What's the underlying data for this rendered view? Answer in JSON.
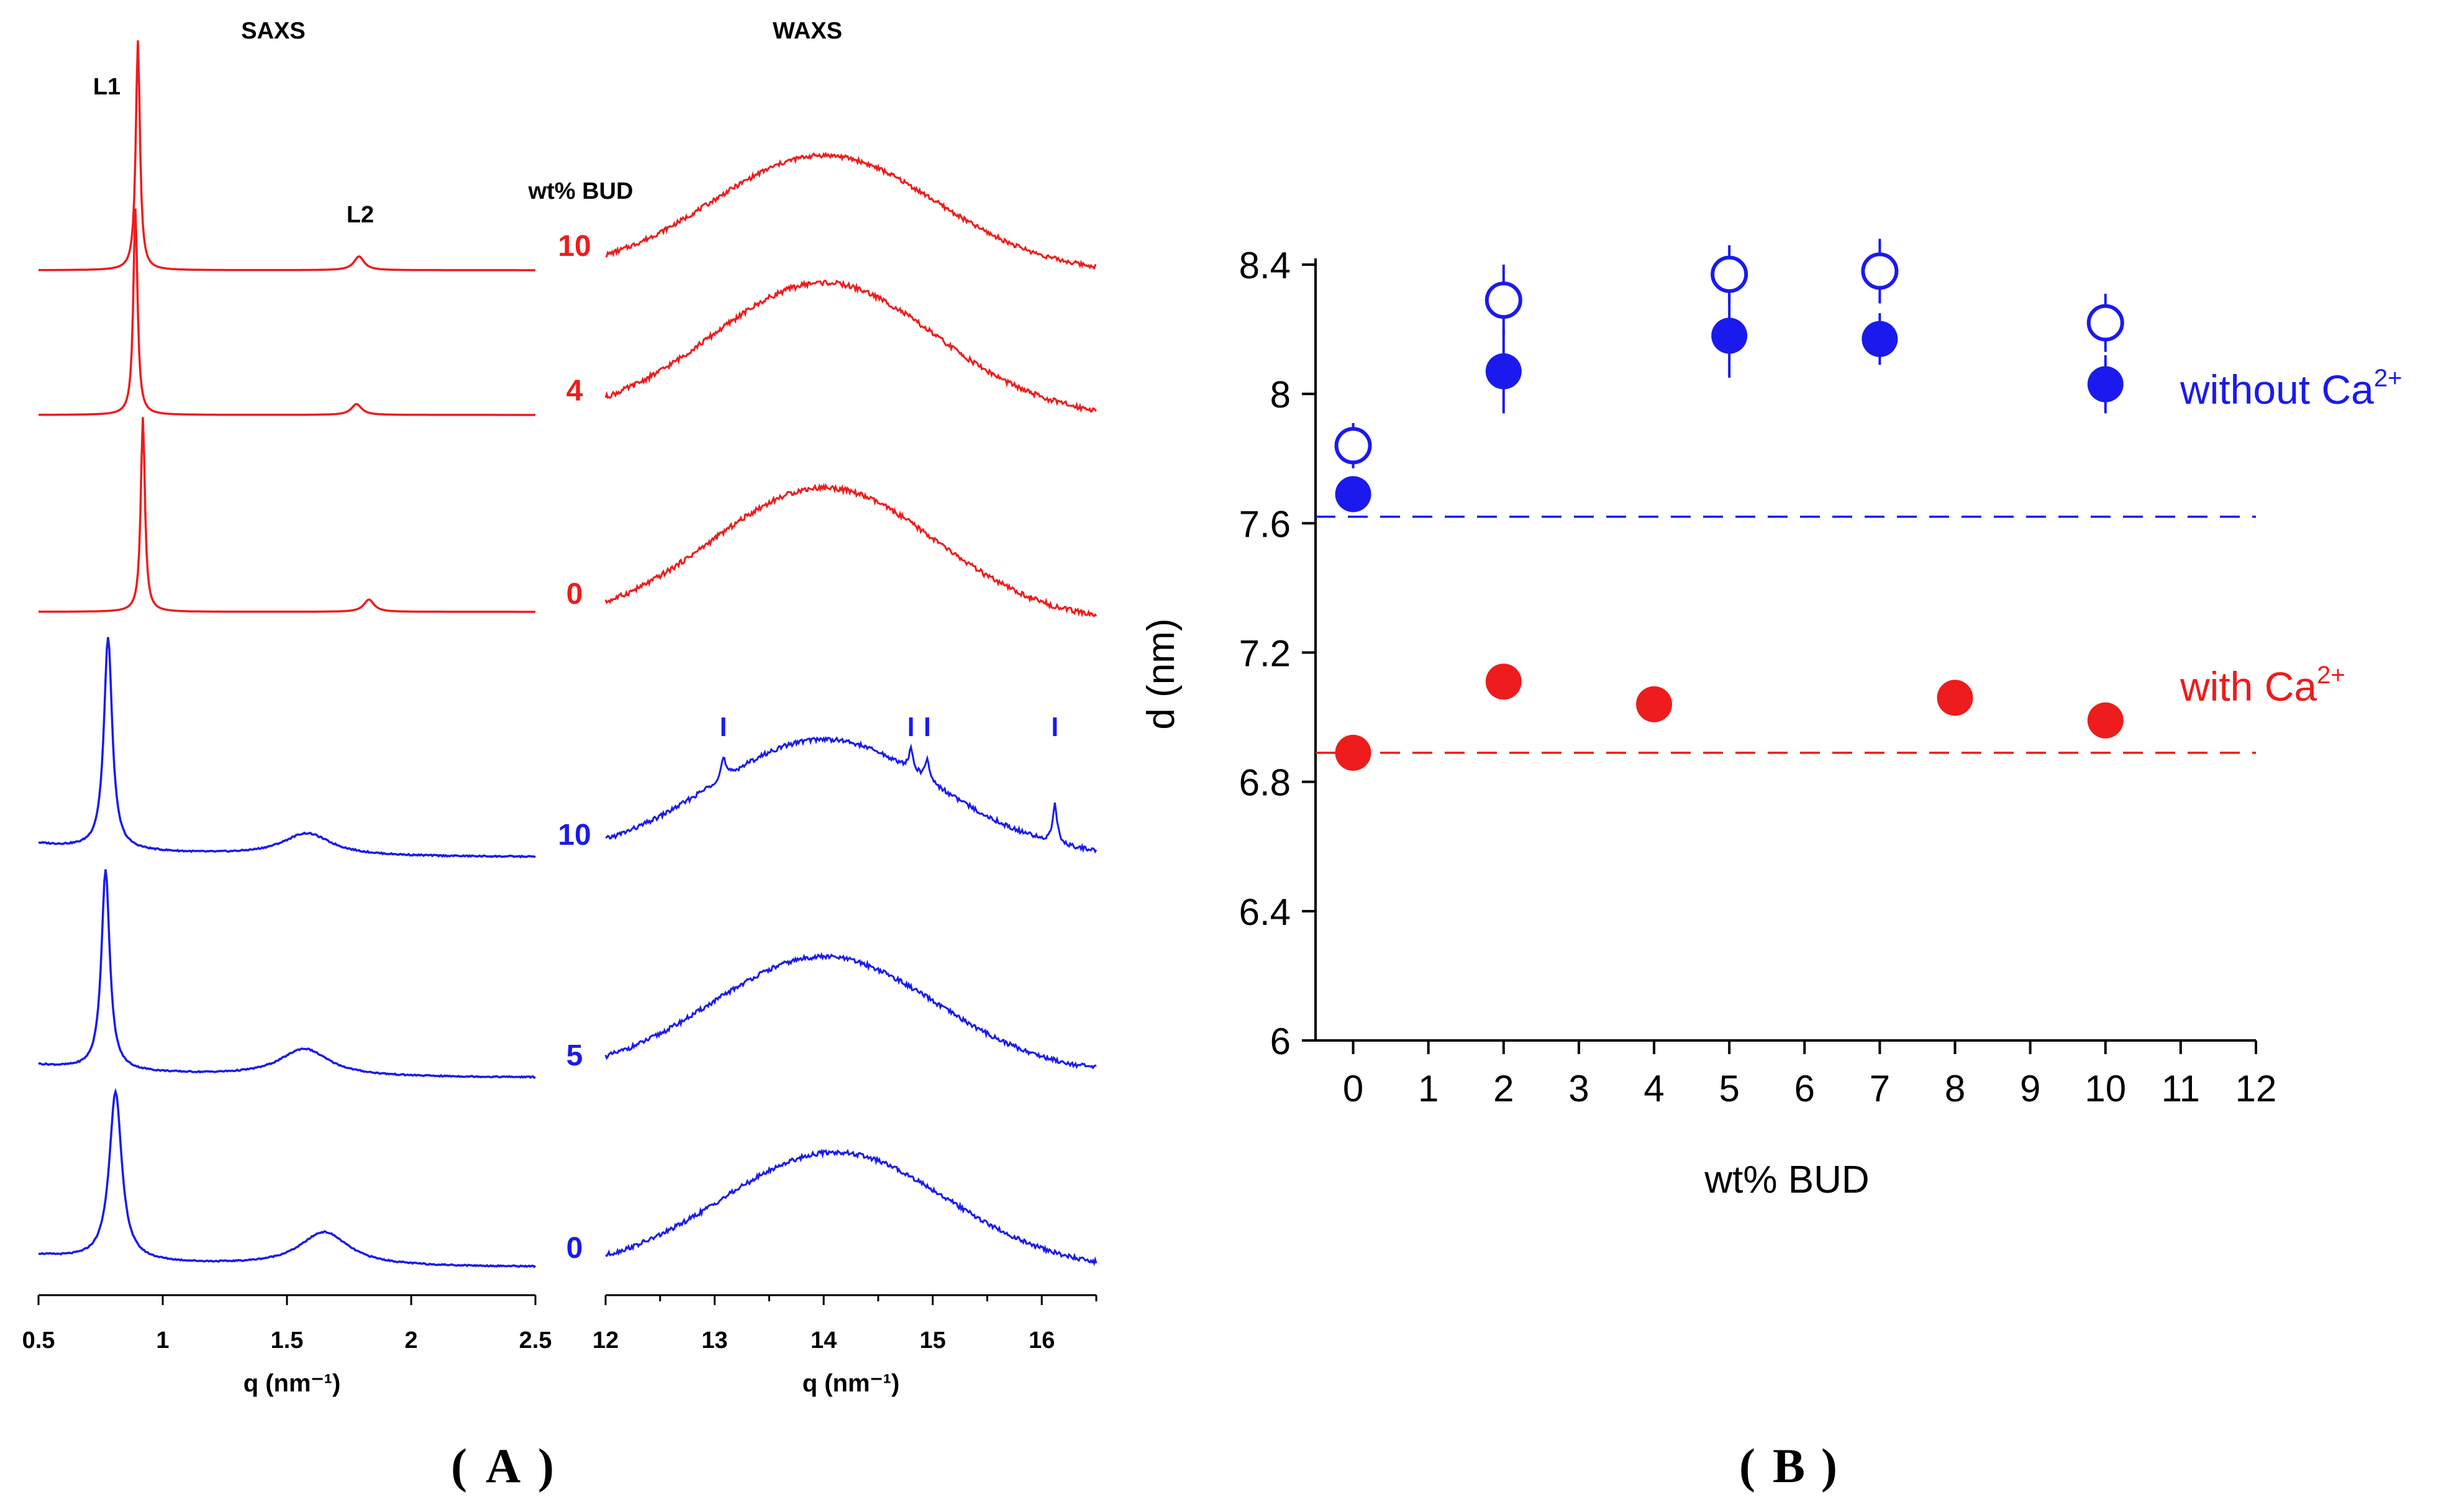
{
  "panel_a_label": "A",
  "panel_b_label": "B",
  "colors": {
    "red": "#ee1c1c",
    "blue": "#1a1aee",
    "axis": "#000000"
  },
  "chart_data": [
    {
      "type": "line",
      "title": "SAXS",
      "xlabel": "q (nm⁻¹)",
      "xlim": [
        0.5,
        2.5
      ],
      "xticks": [
        "0.5",
        "1",
        "1.5",
        "2",
        "2.5"
      ],
      "peak_labels": [
        "L1",
        "L2"
      ],
      "stack_label": "wt% BUD",
      "series": [
        {
          "name": "10",
          "color": "red",
          "peaks": [
            {
              "q": 0.9,
              "h": 1.0,
              "w": 0.01
            },
            {
              "q": 1.79,
              "h": 0.06,
              "w": 0.025
            }
          ]
        },
        {
          "name": "4",
          "color": "red",
          "peaks": [
            {
              "q": 0.89,
              "h": 0.95,
              "w": 0.01
            },
            {
              "q": 1.78,
              "h": 0.05,
              "w": 0.025
            }
          ]
        },
        {
          "name": "0",
          "color": "red",
          "peaks": [
            {
              "q": 0.92,
              "h": 0.95,
              "w": 0.01
            },
            {
              "q": 1.83,
              "h": 0.06,
              "w": 0.025
            }
          ]
        },
        {
          "name": "10",
          "color": "blue",
          "peaks": [
            {
              "q": 0.78,
              "h": 0.95,
              "w": 0.02
            },
            {
              "q": 1.58,
              "h": 0.1,
              "w": 0.12
            }
          ]
        },
        {
          "name": "5",
          "color": "blue",
          "peaks": [
            {
              "q": 0.77,
              "h": 0.95,
              "w": 0.02
            },
            {
              "q": 1.57,
              "h": 0.13,
              "w": 0.12
            }
          ]
        },
        {
          "name": "0",
          "color": "blue",
          "peaks": [
            {
              "q": 0.81,
              "h": 0.85,
              "w": 0.03
            },
            {
              "q": 1.65,
              "h": 0.17,
              "w": 0.12
            }
          ]
        }
      ]
    },
    {
      "type": "line",
      "title": "WAXS",
      "xlabel": "q (nm⁻¹)",
      "xlim": [
        12,
        16.5
      ],
      "xticks": [
        "12",
        "13",
        "14",
        "15",
        "16"
      ],
      "series": [
        {
          "name": "10",
          "color": "red",
          "center": 14.0
        },
        {
          "name": "4",
          "color": "red",
          "center": 14.0
        },
        {
          "name": "0",
          "color": "red",
          "center": 14.0
        },
        {
          "name": "10",
          "color": "blue",
          "center": 14.0,
          "sharp_peaks": [
            13.08,
            14.8,
            14.95,
            16.12
          ]
        },
        {
          "name": "5",
          "color": "blue",
          "center": 14.0
        },
        {
          "name": "0",
          "color": "blue",
          "center": 14.1
        }
      ],
      "markers": [
        13.08,
        14.8,
        14.95,
        16.12
      ]
    },
    {
      "type": "scatter",
      "xlabel": "wt% BUD",
      "ylabel": "d (nm)",
      "xlim": [
        -0.5,
        12
      ],
      "ylim": [
        6,
        8.4
      ],
      "xticks": [
        "0",
        "1",
        "2",
        "3",
        "4",
        "5",
        "6",
        "7",
        "8",
        "9",
        "10",
        "11",
        "12"
      ],
      "yticks": [
        "6",
        "6.4",
        "6.8",
        "7.2",
        "7.6",
        "8",
        "8.4"
      ],
      "series": [
        {
          "name": "without Ca",
          "superscript": "2+",
          "color": "blue",
          "open": [
            {
              "x": 0,
              "y": 7.84,
              "err": 0.07
            },
            {
              "x": 2,
              "y": 8.29,
              "err": 0.11
            },
            {
              "x": 5,
              "y": 8.37,
              "err": 0.09
            },
            {
              "x": 7,
              "y": 8.38,
              "err": 0.1
            },
            {
              "x": 10,
              "y": 8.22,
              "err": 0.09
            }
          ],
          "filled": [
            {
              "x": 0,
              "y": 7.69,
              "err": 0
            },
            {
              "x": 2,
              "y": 8.07,
              "err": 0.13
            },
            {
              "x": 5,
              "y": 8.18,
              "err": 0.13
            },
            {
              "x": 7,
              "y": 8.17,
              "err": 0.08
            },
            {
              "x": 10,
              "y": 8.03,
              "err": 0.09
            }
          ],
          "reference_line": 7.62
        },
        {
          "name": "with Ca",
          "superscript": "2+",
          "color": "red",
          "filled": [
            {
              "x": 0,
              "y": 6.89
            },
            {
              "x": 2,
              "y": 7.11
            },
            {
              "x": 4,
              "y": 7.04
            },
            {
              "x": 8,
              "y": 7.06
            },
            {
              "x": 10,
              "y": 6.99
            }
          ],
          "reference_line": 6.89
        }
      ]
    }
  ]
}
